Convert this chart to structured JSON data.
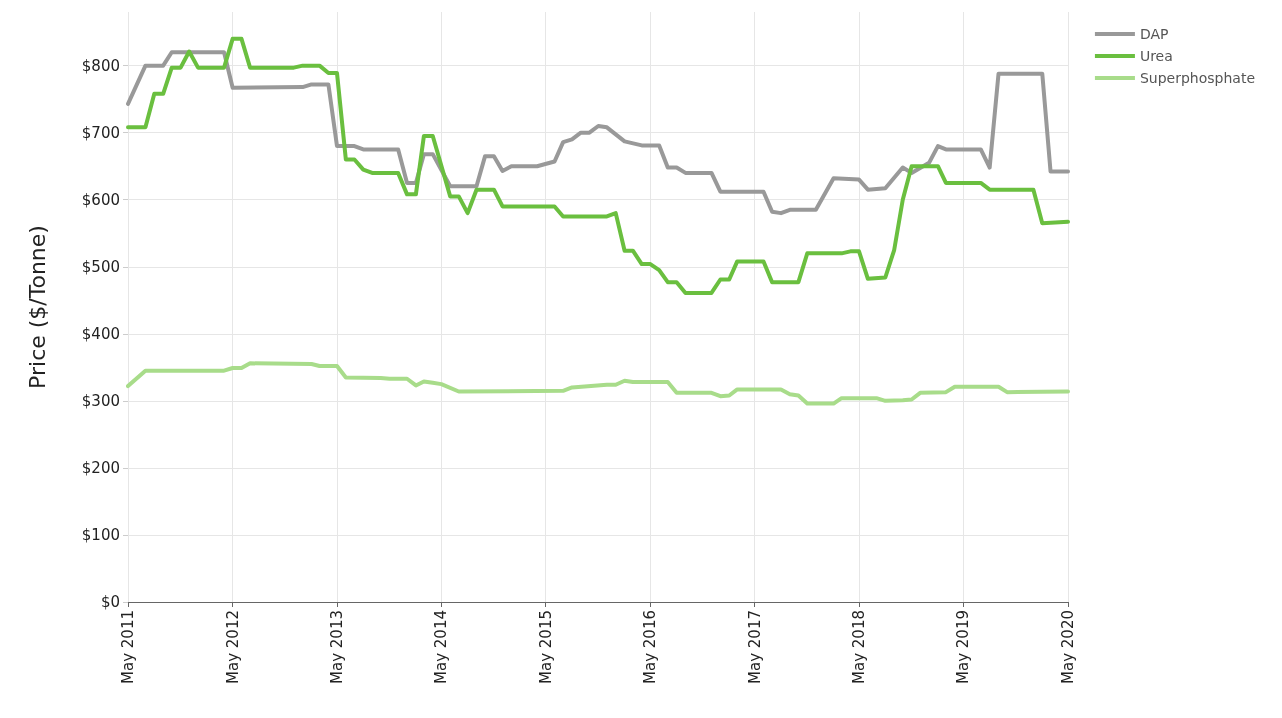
{
  "chart_data": {
    "type": "line",
    "ylabel": "Price ($/Tonne)",
    "xlim": [
      "2011-05",
      "2020-05"
    ],
    "xticks": [
      {
        "value": "2011-05",
        "label": "May 2011"
      },
      {
        "value": "2012-05",
        "label": "May 2012"
      },
      {
        "value": "2013-05",
        "label": "May 2013"
      },
      {
        "value": "2014-05",
        "label": "May 2014"
      },
      {
        "value": "2015-05",
        "label": "May 2015"
      },
      {
        "value": "2016-05",
        "label": "May 2016"
      },
      {
        "value": "2017-05",
        "label": "May 2017"
      },
      {
        "value": "2018-05",
        "label": "May 2018"
      },
      {
        "value": "2019-05",
        "label": "May 2019"
      },
      {
        "value": "2020-05",
        "label": "May 2020"
      }
    ],
    "ylim": [
      0,
      880
    ],
    "yticks": [
      {
        "value": 0,
        "label": "$0"
      },
      {
        "value": 100,
        "label": "$100"
      },
      {
        "value": 200,
        "label": "$200"
      },
      {
        "value": 300,
        "label": "$300"
      },
      {
        "value": 400,
        "label": "$400"
      },
      {
        "value": 500,
        "label": "$500"
      },
      {
        "value": 600,
        "label": "$600"
      },
      {
        "value": 700,
        "label": "$700"
      },
      {
        "value": 800,
        "label": "$800"
      }
    ],
    "grid": true,
    "legend": "top right",
    "line_style": "solid",
    "series": [
      {
        "name": "DAP",
        "color": "#999999",
        "x": [
          "2011-05",
          "2011-07",
          "2011-09",
          "2011-10",
          "2012-04",
          "2012-05",
          "2013-01",
          "2013-02",
          "2013-04",
          "2013-05",
          "2013-07",
          "2013-08",
          "2013-12",
          "2014-01",
          "2014-02",
          "2014-03",
          "2014-04",
          "2014-06",
          "2014-09",
          "2014-10",
          "2014-11",
          "2014-12",
          "2015-01",
          "2015-04",
          "2015-06",
          "2015-07",
          "2015-08",
          "2015-09",
          "2015-10",
          "2015-11",
          "2015-12",
          "2016-02",
          "2016-04",
          "2016-06",
          "2016-07",
          "2016-08",
          "2016-09",
          "2016-12",
          "2017-01",
          "2017-06",
          "2017-07",
          "2017-08",
          "2017-09",
          "2017-12",
          "2018-02",
          "2018-05",
          "2018-06",
          "2018-08",
          "2018-10",
          "2018-11",
          "2019-01",
          "2019-02",
          "2019-03",
          "2019-07",
          "2019-08",
          "2019-09",
          "2020-02",
          "2020-03",
          "2020-05"
        ],
        "values": [
          743,
          800,
          800,
          820,
          820,
          767,
          768,
          772,
          772,
          680,
          680,
          675,
          675,
          625,
          625,
          668,
          668,
          620,
          620,
          665,
          665,
          643,
          650,
          650,
          657,
          686,
          690,
          700,
          700,
          710,
          708,
          687,
          681,
          681,
          648,
          648,
          640,
          640,
          612,
          612,
          582,
          580,
          585,
          585,
          632,
          630,
          615,
          617,
          648,
          640,
          655,
          680,
          675,
          675,
          648,
          788,
          788,
          642,
          642
        ]
      },
      {
        "name": "Urea",
        "color": "#6abf3f",
        "x": [
          "2011-05",
          "2011-07",
          "2011-08",
          "2011-09",
          "2011-10",
          "2011-11",
          "2011-12",
          "2012-01",
          "2012-04",
          "2012-05",
          "2012-06",
          "2012-07",
          "2012-12",
          "2013-01",
          "2013-03",
          "2013-04",
          "2013-05",
          "2013-06",
          "2013-07",
          "2013-08",
          "2013-09",
          "2013-12",
          "2014-01",
          "2014-02",
          "2014-03",
          "2014-04",
          "2014-06",
          "2014-07",
          "2014-08",
          "2014-09",
          "2014-11",
          "2014-12",
          "2015-06",
          "2015-07",
          "2015-12",
          "2016-01",
          "2016-02",
          "2016-03",
          "2016-04",
          "2016-05",
          "2016-06",
          "2016-07",
          "2016-08",
          "2016-09",
          "2016-12",
          "2017-01",
          "2017-02",
          "2017-03",
          "2017-06",
          "2017-07",
          "2017-10",
          "2017-11",
          "2018-03",
          "2018-04",
          "2018-05",
          "2018-06",
          "2018-08",
          "2018-09",
          "2018-10",
          "2018-11",
          "2019-02",
          "2019-03",
          "2019-07",
          "2019-08",
          "2020-01",
          "2020-02",
          "2020-05"
        ],
        "values": [
          708,
          708,
          758,
          758,
          797,
          797,
          821,
          797,
          797,
          840,
          840,
          797,
          797,
          800,
          800,
          789,
          789,
          660,
          660,
          645,
          640,
          640,
          608,
          608,
          695,
          695,
          605,
          605,
          580,
          615,
          615,
          590,
          590,
          575,
          575,
          580,
          524,
          524,
          504,
          504,
          495,
          477,
          477,
          461,
          461,
          481,
          481,
          508,
          508,
          477,
          477,
          520,
          520,
          523,
          523,
          482,
          484,
          525,
          600,
          650,
          650,
          625,
          625,
          615,
          615,
          565,
          567
        ]
      },
      {
        "name": "Superphosphate",
        "color": "#a8dc8a",
        "x": [
          "2011-05",
          "2011-07",
          "2012-04",
          "2012-05",
          "2012-06",
          "2012-07",
          "2013-02",
          "2013-03",
          "2013-05",
          "2013-06",
          "2013-10",
          "2013-11",
          "2014-01",
          "2014-02",
          "2014-03",
          "2014-04",
          "2014-05",
          "2014-07",
          "2015-07",
          "2015-08",
          "2015-12",
          "2016-01",
          "2016-02",
          "2016-03",
          "2016-07",
          "2016-08",
          "2016-12",
          "2017-01",
          "2017-02",
          "2017-03",
          "2017-08",
          "2017-09",
          "2017-10",
          "2017-11",
          "2018-02",
          "2018-03",
          "2018-07",
          "2018-08",
          "2018-10",
          "2018-11",
          "2018-12",
          "2019-03",
          "2019-04",
          "2019-09",
          "2019-10",
          "2020-05"
        ],
        "values": [
          322,
          345,
          345,
          349,
          349,
          356,
          355,
          352,
          352,
          335,
          334,
          333,
          333,
          323,
          329,
          327,
          325,
          314,
          315,
          320,
          324,
          324,
          330,
          328,
          328,
          312,
          312,
          307,
          308,
          317,
          317,
          310,
          308,
          296,
          296,
          304,
          304,
          300,
          301,
          302,
          312,
          313,
          321,
          321,
          313,
          314
        ]
      }
    ]
  }
}
